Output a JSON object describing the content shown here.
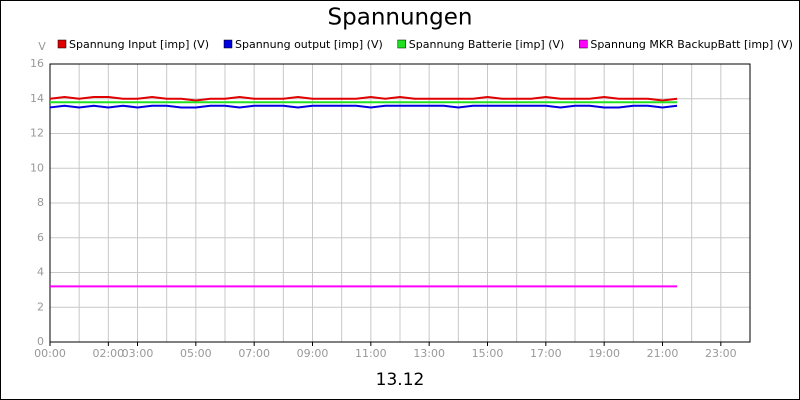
{
  "chart_data": {
    "type": "line",
    "title": "Spannungen",
    "ylabel": "V",
    "xlabel": "13.12",
    "x": [
      0,
      0.5,
      1,
      1.5,
      2,
      2.5,
      3,
      3.5,
      4,
      4.5,
      5,
      5.5,
      6,
      6.5,
      7,
      7.5,
      8,
      8.5,
      9,
      9.5,
      10,
      10.5,
      11,
      11.5,
      12,
      12.5,
      13,
      13.5,
      14,
      14.5,
      15,
      15.5,
      16,
      16.5,
      17,
      17.5,
      18,
      18.5,
      19,
      19.5,
      20,
      20.5,
      21,
      21.5
    ],
    "series": [
      {
        "name": "Spannung Input [imp] (V)",
        "color": "#e00000",
        "values": [
          14.0,
          14.1,
          14.0,
          14.1,
          14.1,
          14.0,
          14.0,
          14.1,
          14.0,
          14.0,
          13.9,
          14.0,
          14.0,
          14.1,
          14.0,
          14.0,
          14.0,
          14.1,
          14.0,
          14.0,
          14.0,
          14.0,
          14.1,
          14.0,
          14.1,
          14.0,
          14.0,
          14.0,
          14.0,
          14.0,
          14.1,
          14.0,
          14.0,
          14.0,
          14.1,
          14.0,
          14.0,
          14.0,
          14.1,
          14.0,
          14.0,
          14.0,
          13.9,
          14.0
        ]
      },
      {
        "name": "Spannung output [imp] (V)",
        "color": "#0000e0",
        "values": [
          13.5,
          13.6,
          13.5,
          13.6,
          13.5,
          13.6,
          13.5,
          13.6,
          13.6,
          13.5,
          13.5,
          13.6,
          13.6,
          13.5,
          13.6,
          13.6,
          13.6,
          13.5,
          13.6,
          13.6,
          13.6,
          13.6,
          13.5,
          13.6,
          13.6,
          13.6,
          13.6,
          13.6,
          13.5,
          13.6,
          13.6,
          13.6,
          13.6,
          13.6,
          13.6,
          13.5,
          13.6,
          13.6,
          13.5,
          13.5,
          13.6,
          13.6,
          13.5,
          13.6
        ]
      },
      {
        "name": "Spannung Batterie [imp] (V)",
        "color": "#20e020",
        "values": [
          13.8,
          13.8,
          13.8,
          13.8,
          13.8,
          13.8,
          13.8,
          13.8,
          13.8,
          13.8,
          13.8,
          13.8,
          13.8,
          13.8,
          13.8,
          13.8,
          13.8,
          13.8,
          13.8,
          13.8,
          13.8,
          13.8,
          13.8,
          13.8,
          13.8,
          13.8,
          13.8,
          13.8,
          13.8,
          13.8,
          13.8,
          13.8,
          13.8,
          13.8,
          13.8,
          13.8,
          13.8,
          13.8,
          13.8,
          13.8,
          13.8,
          13.8,
          13.8,
          13.8
        ]
      },
      {
        "name": "Spannung MKR BackupBatt [imp] (V)",
        "color": "#ff00ff",
        "values": [
          3.2,
          3.2,
          3.2,
          3.2,
          3.2,
          3.2,
          3.2,
          3.2,
          3.2,
          3.2,
          3.2,
          3.2,
          3.2,
          3.2,
          3.2,
          3.2,
          3.2,
          3.2,
          3.2,
          3.2,
          3.2,
          3.2,
          3.2,
          3.2,
          3.2,
          3.2,
          3.2,
          3.2,
          3.2,
          3.2,
          3.2,
          3.2,
          3.2,
          3.2,
          3.2,
          3.2,
          3.2,
          3.2,
          3.2,
          3.2,
          3.2,
          3.2,
          3.2,
          3.2
        ]
      }
    ],
    "xlim": [
      0,
      24
    ],
    "ylim": [
      0,
      16
    ],
    "yticks": [
      0,
      2,
      4,
      6,
      8,
      10,
      12,
      14,
      16
    ],
    "xticks": [
      {
        "value": 0,
        "label": "00:00"
      },
      {
        "value": 2,
        "label": "02:00"
      },
      {
        "value": 3,
        "label": "03:00"
      },
      {
        "value": 5,
        "label": "05:00"
      },
      {
        "value": 7,
        "label": "07:00"
      },
      {
        "value": 9,
        "label": "09:00"
      },
      {
        "value": 11,
        "label": "11:00"
      },
      {
        "value": 13,
        "label": "13:00"
      },
      {
        "value": 15,
        "label": "15:00"
      },
      {
        "value": 17,
        "label": "17:00"
      },
      {
        "value": 19,
        "label": "19:00"
      },
      {
        "value": 21,
        "label": "21:00"
      },
      {
        "value": 23,
        "label": "23:00"
      }
    ],
    "xgrid": [
      1,
      2,
      3,
      4,
      5,
      6,
      7,
      8,
      9,
      10,
      11,
      12,
      13,
      14,
      15,
      16,
      17,
      18,
      19,
      20,
      21,
      22,
      23
    ],
    "grid": true,
    "legend": "top"
  }
}
